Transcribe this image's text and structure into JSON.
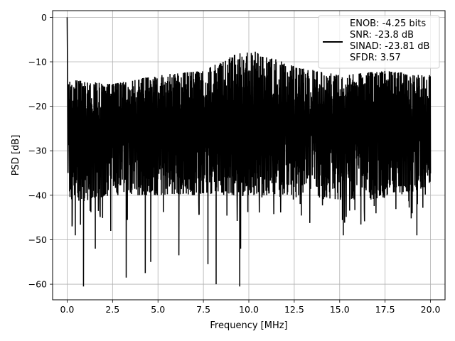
{
  "chart_data": {
    "type": "line",
    "xlabel": "Frequency [MHz]",
    "ylabel": "PSD [dB]",
    "xlim": [
      -0.8,
      20.8
    ],
    "ylim": [
      -63.5,
      1.5
    ],
    "x_ticks": [
      0.0,
      2.5,
      5.0,
      7.5,
      10.0,
      12.5,
      15.0,
      17.5,
      20.0
    ],
    "x_tick_labels": [
      "0.0",
      "2.5",
      "5.0",
      "7.5",
      "10.0",
      "12.5",
      "15.0",
      "17.5",
      "20.0"
    ],
    "y_ticks": [
      0,
      -10,
      -20,
      -30,
      -40,
      -50,
      -60
    ],
    "y_tick_labels": [
      "0",
      "−10",
      "−20",
      "−30",
      "−40",
      "−50",
      "−60"
    ],
    "grid": true,
    "legend_position": "top-right",
    "series": [
      {
        "name": "ENOB: -4.25 bits\nSNR: -23.8 dB\nSINAD: -23.81 dB\nSFDR: 3.57",
        "color": "#000000",
        "x_range": [
          0,
          20
        ],
        "noise_floor_db": -24,
        "dc_peak": {
          "x": 0.0,
          "y": 0.0
        },
        "upper_envelope": [
          [
            0.1,
            -14
          ],
          [
            2.5,
            -15
          ],
          [
            5.0,
            -13
          ],
          [
            7.5,
            -12
          ],
          [
            9.9,
            -7
          ],
          [
            12.5,
            -11
          ],
          [
            15.0,
            -13
          ],
          [
            17.5,
            -12
          ],
          [
            20.0,
            -13
          ]
        ],
        "lower_envelope": [
          [
            0.1,
            -42
          ],
          [
            2.5,
            -40
          ],
          [
            5.0,
            -40
          ],
          [
            7.5,
            -40
          ],
          [
            10.0,
            -40
          ],
          [
            12.5,
            -40
          ],
          [
            15.0,
            -41
          ],
          [
            17.5,
            -41
          ],
          [
            20.0,
            -38
          ]
        ],
        "deep_nulls": [
          [
            0.27,
            -47
          ],
          [
            0.45,
            -49
          ],
          [
            0.9,
            -60.5
          ],
          [
            1.55,
            -52
          ],
          [
            2.4,
            -48
          ],
          [
            3.25,
            -58.5
          ],
          [
            4.3,
            -57.5
          ],
          [
            4.6,
            -55
          ],
          [
            6.15,
            -53.5
          ],
          [
            7.75,
            -55.5
          ],
          [
            8.2,
            -60
          ],
          [
            9.5,
            -60.5
          ],
          [
            9.55,
            -52
          ],
          [
            15.2,
            -49
          ],
          [
            19.25,
            -49
          ]
        ]
      }
    ],
    "legend_lines": [
      "ENOB: -4.25 bits",
      "SNR: -23.8 dB",
      "SINAD: -23.81 dB",
      "SFDR: 3.57"
    ]
  }
}
